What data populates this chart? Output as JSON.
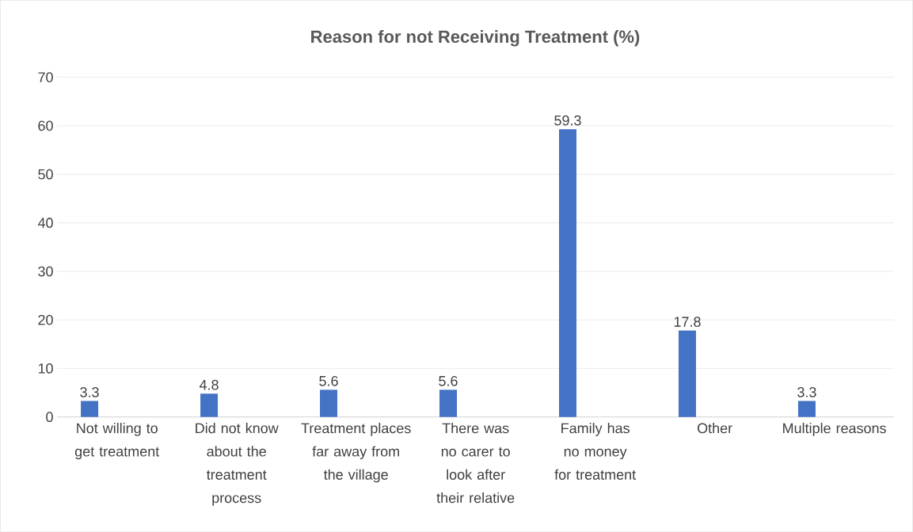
{
  "chart_data": {
    "type": "bar",
    "title": "Reason for not Receiving Treatment (%)",
    "categories": [
      "Not willing to get treatment",
      "Did not know about the treatment process",
      "Treatment places far away from the village",
      "There was no carer to look after their relative",
      "Family has no money for treatment",
      "Other",
      "Multiple reasons"
    ],
    "values": [
      3.3,
      4.8,
      5.6,
      5.6,
      59.3,
      17.8,
      3.3
    ],
    "color": "#4472c4",
    "ylim": [
      0,
      70
    ],
    "yticks": [
      0,
      10,
      20,
      30,
      40,
      50,
      60,
      70
    ],
    "grid": "y",
    "data_labels": true
  }
}
